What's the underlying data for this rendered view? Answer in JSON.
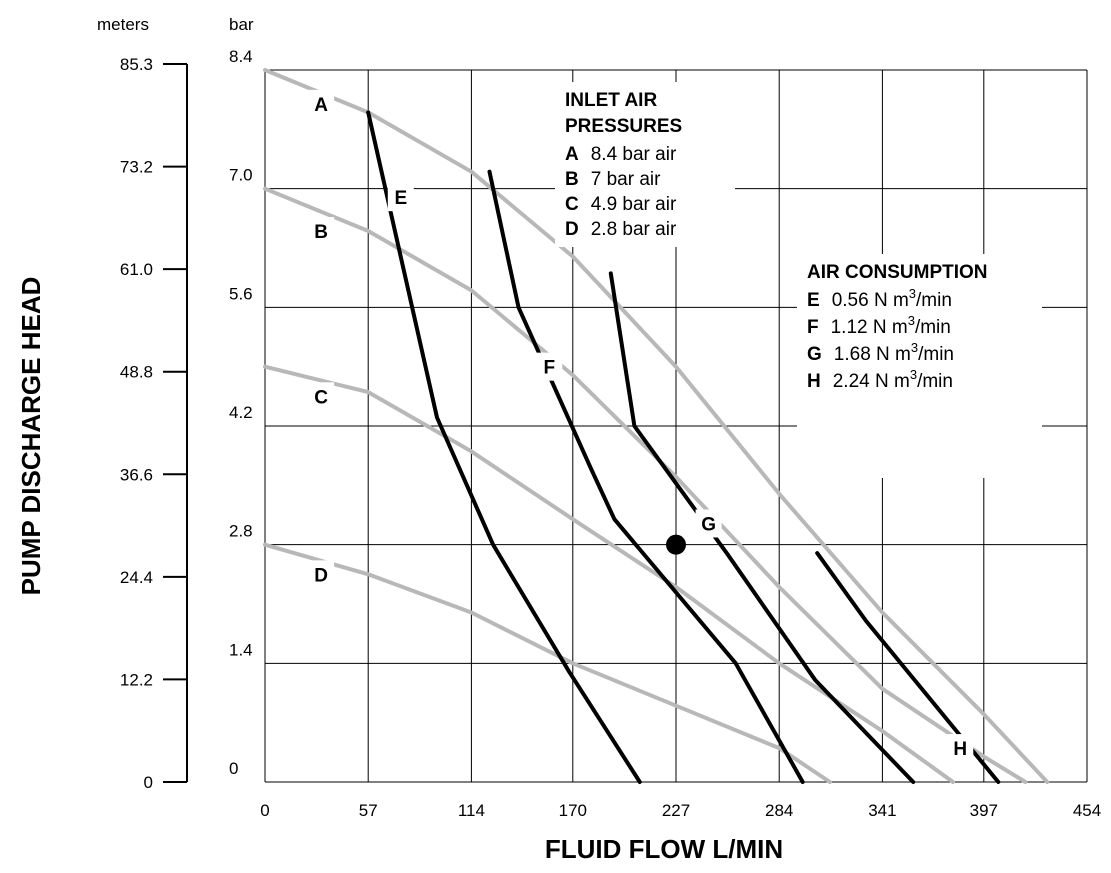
{
  "chart_data": {
    "type": "line",
    "title": "",
    "xlabel": "FLUID FLOW L/MIN",
    "ylabel": "PUMP DISCHARGE HEAD",
    "y_unit_left": "meters",
    "y_unit_right": "bar",
    "xlim": [
      0,
      454
    ],
    "ylim_bar": [
      0,
      8.4
    ],
    "x_ticks": [
      "0",
      "57",
      "114",
      "170",
      "227",
      "284",
      "341",
      "397",
      "454"
    ],
    "y_ticks_bar": [
      "0",
      "1.4",
      "2.8",
      "4.2",
      "5.6",
      "7.0",
      "8.4"
    ],
    "y_ticks_meters": [
      "0",
      "12.2",
      "24.4",
      "36.6",
      "48.8",
      "61.0",
      "73.2",
      "85.3"
    ],
    "grid": true,
    "pressure_series": [
      {
        "name": "A",
        "color": "#b8b8b8",
        "points": [
          [
            0,
            8.4
          ],
          [
            57,
            7.9
          ],
          [
            114,
            7.2
          ],
          [
            170,
            6.2
          ],
          [
            227,
            4.9
          ],
          [
            284,
            3.4
          ],
          [
            341,
            2.0
          ],
          [
            397,
            0.8
          ],
          [
            432,
            0
          ]
        ]
      },
      {
        "name": "B",
        "color": "#b8b8b8",
        "points": [
          [
            0,
            7.0
          ],
          [
            57,
            6.5
          ],
          [
            114,
            5.8
          ],
          [
            170,
            4.8
          ],
          [
            227,
            3.6
          ],
          [
            284,
            2.3
          ],
          [
            341,
            1.1
          ],
          [
            397,
            0.3
          ],
          [
            420,
            0
          ]
        ]
      },
      {
        "name": "C",
        "color": "#b8b8b8",
        "points": [
          [
            0,
            4.9
          ],
          [
            57,
            4.6
          ],
          [
            114,
            3.9
          ],
          [
            170,
            3.1
          ],
          [
            227,
            2.3
          ],
          [
            284,
            1.4
          ],
          [
            341,
            0.6
          ],
          [
            380,
            0
          ]
        ]
      },
      {
        "name": "D",
        "color": "#b8b8b8",
        "points": [
          [
            0,
            2.8
          ],
          [
            57,
            2.45
          ],
          [
            114,
            2.0
          ],
          [
            170,
            1.4
          ],
          [
            227,
            0.9
          ],
          [
            284,
            0.4
          ],
          [
            312,
            0
          ]
        ]
      }
    ],
    "air_series": [
      {
        "name": "E",
        "color": "#000000",
        "points": [
          [
            57,
            7.9
          ],
          [
            95,
            4.3
          ],
          [
            126,
            2.8
          ],
          [
            168,
            1.3
          ],
          [
            207,
            0
          ]
        ]
      },
      {
        "name": "F",
        "color": "#000000",
        "points": [
          [
            124,
            7.2
          ],
          [
            140,
            5.6
          ],
          [
            180,
            3.7
          ],
          [
            193,
            3.1
          ],
          [
            260,
            1.4
          ],
          [
            297,
            0
          ]
        ]
      },
      {
        "name": "G",
        "color": "#000000",
        "points": [
          [
            191,
            6.0
          ],
          [
            204,
            4.2
          ],
          [
            255,
            2.7
          ],
          [
            304,
            1.2
          ],
          [
            358,
            0
          ]
        ]
      },
      {
        "name": "H",
        "color": "#000000",
        "points": [
          [
            305,
            2.7
          ],
          [
            332,
            1.9
          ],
          [
            405,
            0
          ]
        ]
      }
    ],
    "labels": [
      {
        "text": "A",
        "x": 31,
        "y": 8.0
      },
      {
        "text": "B",
        "x": 31,
        "y": 6.5
      },
      {
        "text": "C",
        "x": 31,
        "y": 4.55
      },
      {
        "text": "D",
        "x": 31,
        "y": 2.45
      },
      {
        "text": "E",
        "x": 75,
        "y": 6.9
      },
      {
        "text": "F",
        "x": 157,
        "y": 4.9
      },
      {
        "text": "G",
        "x": 245,
        "y": 3.05
      },
      {
        "text": "H",
        "x": 384,
        "y": 0.4
      }
    ],
    "marker": {
      "x": 227,
      "y": 2.8
    },
    "legend_pressure": {
      "title": [
        "INLET AIR",
        "PRESSURES"
      ],
      "items": [
        {
          "key": "A",
          "text": "8.4 bar air"
        },
        {
          "key": "B",
          "text": "7 bar air"
        },
        {
          "key": "C",
          "text": "4.9 bar air"
        },
        {
          "key": "D",
          "text": "2.8 bar air"
        }
      ]
    },
    "legend_air": {
      "title": "AIR CONSUMPTION",
      "items": [
        {
          "key": "E",
          "value": "0.56 N m",
          "sup": "3",
          "unit": "/min"
        },
        {
          "key": "F",
          "value": "1.12 N m",
          "sup": "3",
          "unit": "/min"
        },
        {
          "key": "G",
          "value": "1.68 N m",
          "sup": "3",
          "unit": "/min"
        },
        {
          "key": "H",
          "value": "2.24 N m",
          "sup": "3",
          "unit": "/min"
        }
      ]
    }
  }
}
